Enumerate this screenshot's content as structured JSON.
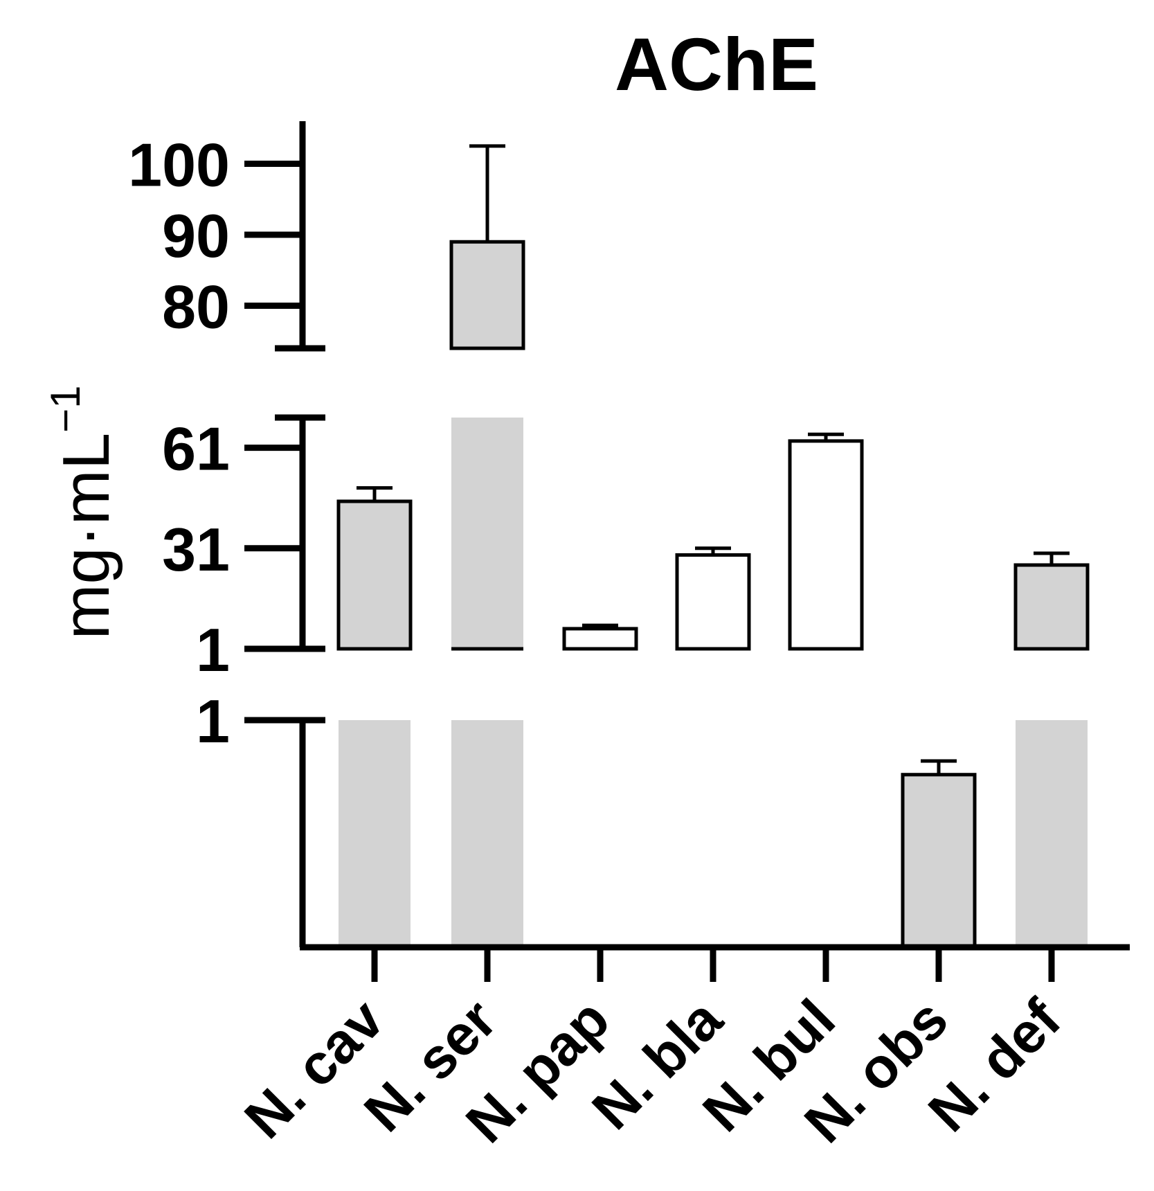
{
  "chart_data": {
    "type": "bar",
    "title": "AChE",
    "ylabel": "mg·mL",
    "ylabel_superscript": "−1",
    "categories": [
      "N. cav",
      "N. ser",
      "N. pap",
      "N. bla",
      "N. bul",
      "N. obs",
      "N. def"
    ],
    "values": [
      45,
      89,
      7,
      29,
      63,
      0.76,
      26
    ],
    "errors": [
      4,
      13.5,
      1,
      2,
      2,
      0.06,
      3.5
    ],
    "bar_fills": [
      "#d3d3d3",
      "#d3d3d3",
      "#ffffff",
      "#ffffff",
      "#ffffff",
      "#d3d3d3",
      "#d3d3d3"
    ],
    "y_axis_segments": [
      {
        "range": [
          0,
          1
        ],
        "ticks": [
          {
            "value": 1,
            "label": "1"
          }
        ]
      },
      {
        "range": [
          1,
          70
        ],
        "ticks": [
          {
            "value": 1,
            "label": "1"
          },
          {
            "value": 31,
            "label": "31"
          },
          {
            "value": 61,
            "label": "61"
          }
        ]
      },
      {
        "range": [
          74,
          106
        ],
        "ticks": [
          {
            "value": 80,
            "label": "80"
          },
          {
            "value": 90,
            "label": "90"
          },
          {
            "value": 100,
            "label": "100"
          }
        ]
      }
    ],
    "axis_breaks": true,
    "grid": false,
    "legend": "none"
  }
}
